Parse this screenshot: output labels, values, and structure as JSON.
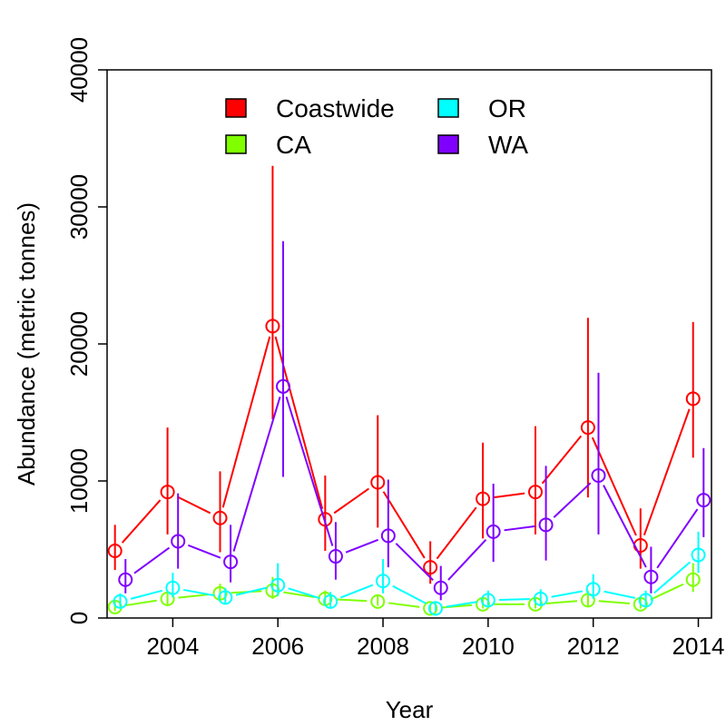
{
  "chart_data": {
    "type": "line",
    "xlabel": "Year",
    "ylabel": "Abundance (metric tonnes)",
    "xlim": [
      2002.75,
      2014.25
    ],
    "ylim": [
      0,
      40000
    ],
    "x_ticks": [
      2004,
      2006,
      2008,
      2010,
      2012,
      2014
    ],
    "y_ticks": [
      0,
      10000,
      20000,
      30000,
      40000
    ],
    "x_tick_labels": [
      "2004",
      "2006",
      "2008",
      "2010",
      "2012",
      "2014"
    ],
    "y_tick_labels": [
      "0",
      "10000",
      "20000",
      "30000",
      "40000"
    ],
    "years": [
      2003,
      2004,
      2005,
      2006,
      2007,
      2008,
      2009,
      2010,
      2011,
      2012,
      2013,
      2014
    ],
    "legend_position": "top",
    "grid": false,
    "series": [
      {
        "name": "Coastwide",
        "color": "#ff0000",
        "offset": -0.1,
        "values": [
          4900,
          9200,
          7300,
          21300,
          7200,
          9900,
          3700,
          8700,
          9200,
          13900,
          5300,
          16000
        ],
        "lower": [
          3500,
          6100,
          4800,
          14500,
          4900,
          6600,
          2500,
          5800,
          6100,
          8800,
          3600,
          11700
        ],
        "upper": [
          6800,
          13900,
          10700,
          33000,
          10400,
          14800,
          5600,
          12800,
          14000,
          21900,
          8000,
          21600
        ]
      },
      {
        "name": "CA",
        "color": "#7fff00",
        "offset": -0.1,
        "values": [
          800,
          1400,
          1800,
          2000,
          1400,
          1200,
          700,
          1000,
          1000,
          1300,
          1000,
          2800
        ],
        "lower": [
          500,
          1000,
          1300,
          1400,
          1000,
          900,
          500,
          700,
          700,
          900,
          700,
          1900
        ],
        "upper": [
          1200,
          2000,
          2500,
          3000,
          2000,
          1700,
          1000,
          1500,
          1500,
          2000,
          1500,
          4000
        ]
      },
      {
        "name": "OR",
        "color": "#00ffff",
        "offset": 0.0,
        "values": [
          1200,
          2200,
          1500,
          2400,
          1200,
          2700,
          700,
          1300,
          1400,
          2100,
          1300,
          4600
        ],
        "lower": [
          800,
          1500,
          1000,
          1600,
          800,
          1800,
          500,
          900,
          900,
          1400,
          900,
          3300
        ],
        "upper": [
          1800,
          3300,
          2200,
          4000,
          1900,
          4300,
          1100,
          2000,
          2100,
          3200,
          2000,
          6300
        ]
      },
      {
        "name": "WA",
        "color": "#7f00ff",
        "offset": 0.1,
        "values": [
          2800,
          5600,
          4100,
          16900,
          4500,
          6000,
          2200,
          6300,
          6800,
          10400,
          3000,
          8600
        ],
        "lower": [
          1800,
          3600,
          2600,
          10300,
          2800,
          3700,
          1300,
          4100,
          4200,
          6100,
          1800,
          5900
        ],
        "upper": [
          4300,
          9100,
          6800,
          27500,
          7000,
          10100,
          3800,
          9800,
          11100,
          17900,
          5200,
          12400
        ]
      }
    ]
  }
}
